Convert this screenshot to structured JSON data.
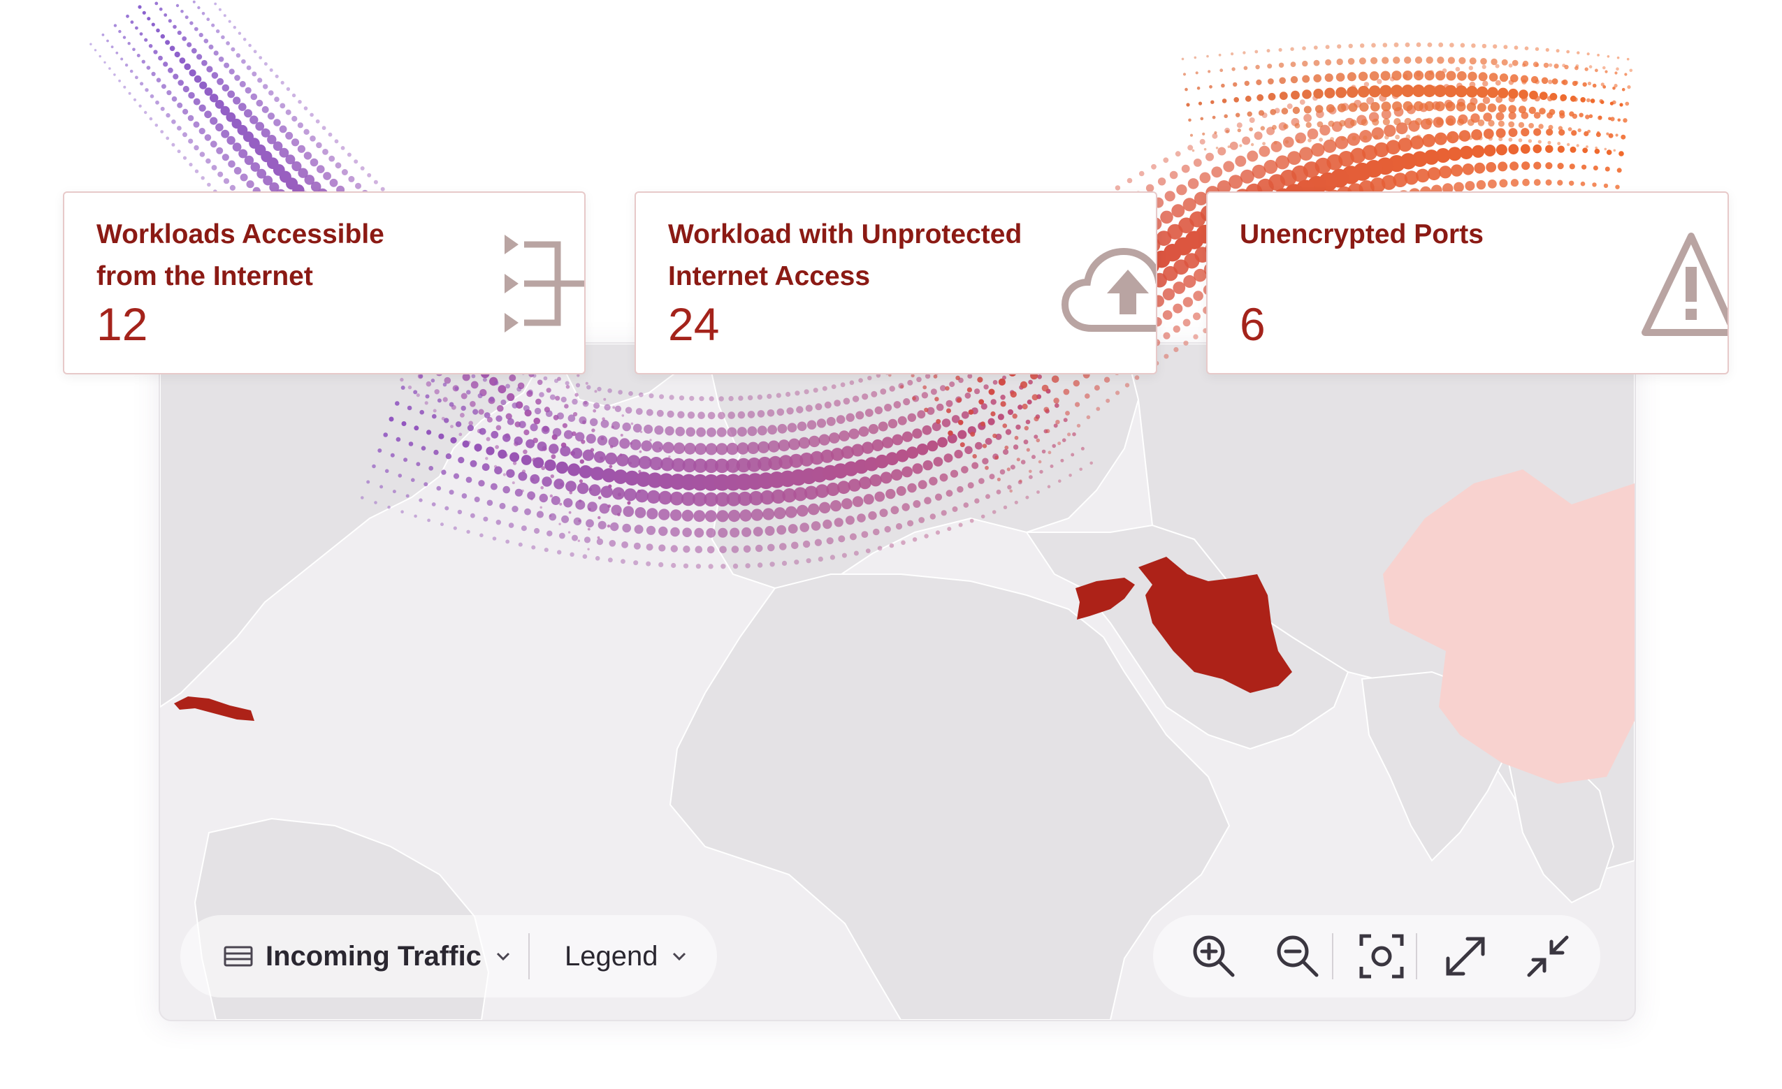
{
  "cards": [
    {
      "label_line1": "Workloads Accessible",
      "label_line2": "from the Internet",
      "value": "12",
      "icon": "exit-arrows-icon"
    },
    {
      "label_line1": "Workload with Unprotected",
      "label_line2": "Internet Access",
      "value": "24",
      "icon": "cloud-upload-icon"
    },
    {
      "label_line1": "Unencrypted Ports",
      "label_line2": "",
      "value": "6",
      "icon": "warning-triangle-icon"
    }
  ],
  "controls": {
    "traffic_label": "Incoming Traffic",
    "legend_label": "Legend",
    "zoom_buttons": [
      "zoom-in-icon",
      "zoom-out-icon",
      "focus-icon",
      "expand-icon",
      "collapse-icon"
    ]
  },
  "colors": {
    "highlight_country": "#ad2218",
    "light_country": "#f8d2cf",
    "land": "#e4e2e5",
    "ocean": "#f0eef1",
    "card_text": "#8b1a14",
    "icon": "#b9a4a2",
    "dots_start": "#7b52c8",
    "dots_end": "#e8562c"
  }
}
